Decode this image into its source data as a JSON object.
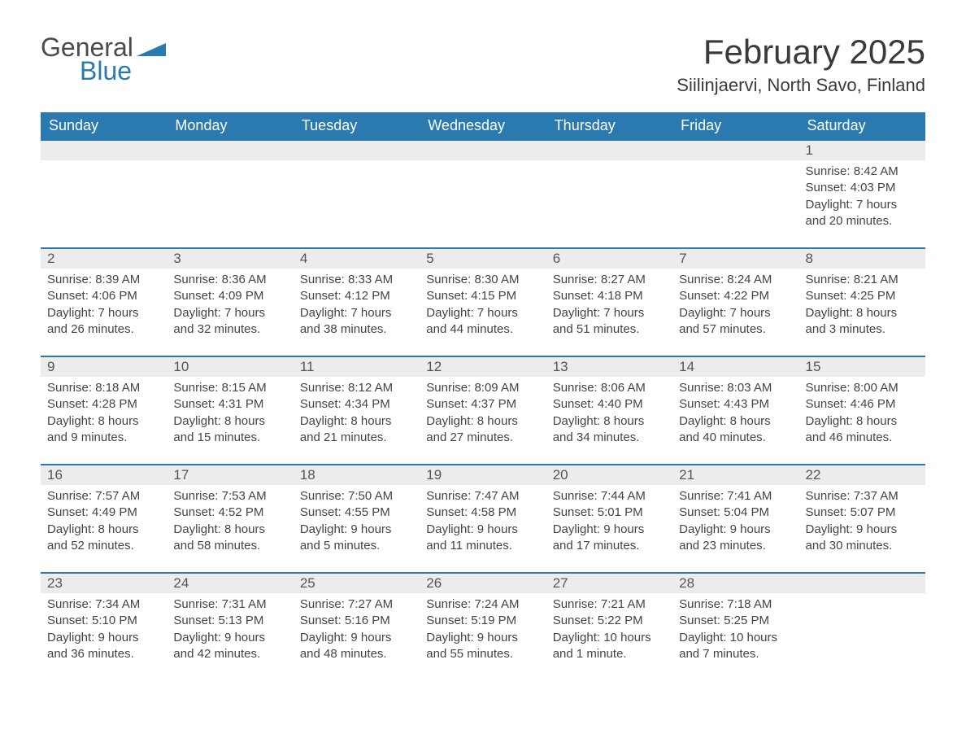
{
  "logo": {
    "text1": "General",
    "text2": "Blue",
    "icon_color": "#2a7ab0"
  },
  "title": "February 2025",
  "location": "Siilinjaervi, North Savo, Finland",
  "colors": {
    "header_bg": "#2a7ab0",
    "header_text": "#ffffff",
    "daynum_bg": "#ececec",
    "row_border": "#2a7ab0",
    "body_text": "#444444",
    "title_text": "#3a3a3a"
  },
  "typography": {
    "title_fontsize": 42,
    "location_fontsize": 22,
    "dayheader_fontsize": 18,
    "daynum_fontsize": 17,
    "info_fontsize": 15
  },
  "layout": {
    "columns": 7,
    "rows": 5,
    "start_day_index": 6
  },
  "day_headers": [
    "Sunday",
    "Monday",
    "Tuesday",
    "Wednesday",
    "Thursday",
    "Friday",
    "Saturday"
  ],
  "days": [
    {
      "n": 1,
      "sunrise": "8:42 AM",
      "sunset": "4:03 PM",
      "daylight": "7 hours and 20 minutes."
    },
    {
      "n": 2,
      "sunrise": "8:39 AM",
      "sunset": "4:06 PM",
      "daylight": "7 hours and 26 minutes."
    },
    {
      "n": 3,
      "sunrise": "8:36 AM",
      "sunset": "4:09 PM",
      "daylight": "7 hours and 32 minutes."
    },
    {
      "n": 4,
      "sunrise": "8:33 AM",
      "sunset": "4:12 PM",
      "daylight": "7 hours and 38 minutes."
    },
    {
      "n": 5,
      "sunrise": "8:30 AM",
      "sunset": "4:15 PM",
      "daylight": "7 hours and 44 minutes."
    },
    {
      "n": 6,
      "sunrise": "8:27 AM",
      "sunset": "4:18 PM",
      "daylight": "7 hours and 51 minutes."
    },
    {
      "n": 7,
      "sunrise": "8:24 AM",
      "sunset": "4:22 PM",
      "daylight": "7 hours and 57 minutes."
    },
    {
      "n": 8,
      "sunrise": "8:21 AM",
      "sunset": "4:25 PM",
      "daylight": "8 hours and 3 minutes."
    },
    {
      "n": 9,
      "sunrise": "8:18 AM",
      "sunset": "4:28 PM",
      "daylight": "8 hours and 9 minutes."
    },
    {
      "n": 10,
      "sunrise": "8:15 AM",
      "sunset": "4:31 PM",
      "daylight": "8 hours and 15 minutes."
    },
    {
      "n": 11,
      "sunrise": "8:12 AM",
      "sunset": "4:34 PM",
      "daylight": "8 hours and 21 minutes."
    },
    {
      "n": 12,
      "sunrise": "8:09 AM",
      "sunset": "4:37 PM",
      "daylight": "8 hours and 27 minutes."
    },
    {
      "n": 13,
      "sunrise": "8:06 AM",
      "sunset": "4:40 PM",
      "daylight": "8 hours and 34 minutes."
    },
    {
      "n": 14,
      "sunrise": "8:03 AM",
      "sunset": "4:43 PM",
      "daylight": "8 hours and 40 minutes."
    },
    {
      "n": 15,
      "sunrise": "8:00 AM",
      "sunset": "4:46 PM",
      "daylight": "8 hours and 46 minutes."
    },
    {
      "n": 16,
      "sunrise": "7:57 AM",
      "sunset": "4:49 PM",
      "daylight": "8 hours and 52 minutes."
    },
    {
      "n": 17,
      "sunrise": "7:53 AM",
      "sunset": "4:52 PM",
      "daylight": "8 hours and 58 minutes."
    },
    {
      "n": 18,
      "sunrise": "7:50 AM",
      "sunset": "4:55 PM",
      "daylight": "9 hours and 5 minutes."
    },
    {
      "n": 19,
      "sunrise": "7:47 AM",
      "sunset": "4:58 PM",
      "daylight": "9 hours and 11 minutes."
    },
    {
      "n": 20,
      "sunrise": "7:44 AM",
      "sunset": "5:01 PM",
      "daylight": "9 hours and 17 minutes."
    },
    {
      "n": 21,
      "sunrise": "7:41 AM",
      "sunset": "5:04 PM",
      "daylight": "9 hours and 23 minutes."
    },
    {
      "n": 22,
      "sunrise": "7:37 AM",
      "sunset": "5:07 PM",
      "daylight": "9 hours and 30 minutes."
    },
    {
      "n": 23,
      "sunrise": "7:34 AM",
      "sunset": "5:10 PM",
      "daylight": "9 hours and 36 minutes."
    },
    {
      "n": 24,
      "sunrise": "7:31 AM",
      "sunset": "5:13 PM",
      "daylight": "9 hours and 42 minutes."
    },
    {
      "n": 25,
      "sunrise": "7:27 AM",
      "sunset": "5:16 PM",
      "daylight": "9 hours and 48 minutes."
    },
    {
      "n": 26,
      "sunrise": "7:24 AM",
      "sunset": "5:19 PM",
      "daylight": "9 hours and 55 minutes."
    },
    {
      "n": 27,
      "sunrise": "7:21 AM",
      "sunset": "5:22 PM",
      "daylight": "10 hours and 1 minute."
    },
    {
      "n": 28,
      "sunrise": "7:18 AM",
      "sunset": "5:25 PM",
      "daylight": "10 hours and 7 minutes."
    }
  ],
  "labels": {
    "sunrise": "Sunrise:",
    "sunset": "Sunset:",
    "daylight": "Daylight:"
  }
}
